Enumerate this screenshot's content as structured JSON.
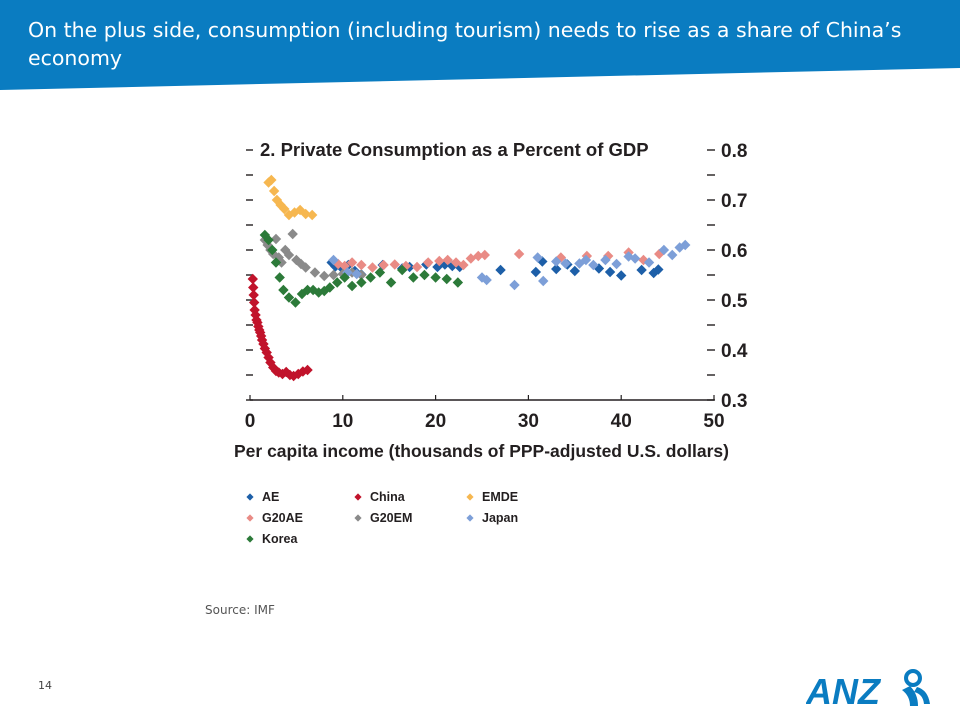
{
  "slide": {
    "title": "On the plus side, consumption (including tourism) needs to rise as a share of China’s economy",
    "source": "Source: IMF",
    "page_number": "14",
    "logo_text": "ANZ",
    "colors": {
      "banner": "#0a7cc1",
      "logo": "#0a7cc1",
      "text": "#231f20"
    }
  },
  "chart_data": {
    "type": "scatter",
    "title": "2. Private Consumption as a Percent of GDP",
    "xlabel": "Per capita income (thousands of PPP-adjusted U.S. dollars)",
    "ylabel": "",
    "xlim": [
      0,
      50
    ],
    "ylim": [
      0.3,
      0.8
    ],
    "x_ticks": [
      "0",
      "10",
      "20",
      "30",
      "40",
      "50"
    ],
    "y_ticks": [
      "0.3",
      "0.4",
      "0.5",
      "0.6",
      "0.7",
      "0.8"
    ],
    "y_axis_side": "right",
    "grid": false,
    "legend_position": "bottom",
    "series": [
      {
        "name": "AE",
        "color": "#1d5fa8",
        "x": [
          8.8,
          9.2,
          10.0,
          10.6,
          11.3,
          12.0,
          14.3,
          16.4,
          17.2,
          19.0,
          20.2,
          21.0,
          21.8,
          22.6,
          27.0,
          30.8,
          31.5,
          33.0,
          34.2,
          35.0,
          37.6,
          38.8,
          40.0,
          42.2,
          43.5,
          44.0
        ],
        "y": [
          0.575,
          0.567,
          0.562,
          0.57,
          0.558,
          0.551,
          0.57,
          0.563,
          0.566,
          0.571,
          0.566,
          0.571,
          0.568,
          0.566,
          0.56,
          0.556,
          0.577,
          0.562,
          0.571,
          0.558,
          0.563,
          0.556,
          0.549,
          0.56,
          0.554,
          0.561
        ]
      },
      {
        "name": "China",
        "color": "#c1132b",
        "x": [
          0.3,
          0.35,
          0.4,
          0.45,
          0.5,
          0.6,
          0.7,
          0.8,
          0.9,
          1.0,
          1.1,
          1.2,
          1.3,
          1.45,
          1.6,
          1.8,
          2.0,
          2.2,
          2.5,
          2.8,
          3.1,
          3.5,
          3.9,
          4.3,
          4.7,
          5.2,
          5.7,
          6.2
        ],
        "y": [
          0.542,
          0.525,
          0.51,
          0.495,
          0.48,
          0.47,
          0.46,
          0.455,
          0.447,
          0.44,
          0.435,
          0.428,
          0.42,
          0.412,
          0.403,
          0.395,
          0.385,
          0.375,
          0.365,
          0.358,
          0.355,
          0.352,
          0.356,
          0.35,
          0.348,
          0.352,
          0.357,
          0.36
        ]
      },
      {
        "name": "EMDE",
        "color": "#f6b750",
        "x": [
          2.0,
          2.3,
          2.6,
          2.9,
          3.3,
          3.7,
          4.2,
          4.8,
          5.4,
          6.0,
          6.7
        ],
        "y": [
          0.735,
          0.74,
          0.718,
          0.7,
          0.69,
          0.682,
          0.67,
          0.675,
          0.68,
          0.672,
          0.67
        ]
      },
      {
        "name": "G20AE",
        "color": "#e98b85",
        "x": [
          9.5,
          10.2,
          11.0,
          12.0,
          13.2,
          14.4,
          15.6,
          16.8,
          18.0,
          19.2,
          20.4,
          21.3,
          22.2,
          23.0,
          23.8,
          24.6,
          25.3,
          29.0,
          33.5,
          36.3,
          38.6,
          40.8,
          42.4,
          44.1
        ],
        "y": [
          0.572,
          0.568,
          0.575,
          0.57,
          0.565,
          0.57,
          0.571,
          0.568,
          0.566,
          0.575,
          0.578,
          0.58,
          0.575,
          0.57,
          0.583,
          0.588,
          0.59,
          0.592,
          0.585,
          0.588,
          0.588,
          0.595,
          0.58,
          0.592
        ]
      },
      {
        "name": "G20EM",
        "color": "#8a8a8a",
        "x": [
          1.6,
          1.9,
          2.2,
          2.5,
          2.8,
          3.1,
          3.4,
          3.8,
          4.2,
          4.6,
          5.0,
          5.5,
          6.0,
          7.0,
          8.0,
          9.0,
          10.0,
          11.0,
          12.0
        ],
        "y": [
          0.62,
          0.61,
          0.6,
          0.592,
          0.622,
          0.585,
          0.575,
          0.6,
          0.59,
          0.632,
          0.58,
          0.572,
          0.565,
          0.555,
          0.548,
          0.55,
          0.552,
          0.555,
          0.55
        ]
      },
      {
        "name": "Japan",
        "color": "#7d9fd8",
        "x": [
          9.0,
          10.5,
          11.5,
          25.0,
          25.5,
          28.5,
          31.0,
          31.6,
          33.0,
          34.0,
          35.5,
          36.2,
          37.0,
          38.3,
          39.5,
          40.8,
          41.5,
          43.0,
          44.6,
          45.5,
          46.3,
          46.9
        ],
        "y": [
          0.58,
          0.555,
          0.552,
          0.545,
          0.54,
          0.53,
          0.585,
          0.538,
          0.577,
          0.573,
          0.573,
          0.58,
          0.57,
          0.58,
          0.572,
          0.587,
          0.583,
          0.575,
          0.6,
          0.59,
          0.605,
          0.61
        ]
      },
      {
        "name": "Korea",
        "color": "#2c7a39",
        "x": [
          1.6,
          2.0,
          2.4,
          2.8,
          3.2,
          3.6,
          4.2,
          4.9,
          5.6,
          6.2,
          6.8,
          7.4,
          8.0,
          8.6,
          9.4,
          10.2,
          11.0,
          12.0,
          13.0,
          14.0,
          15.2,
          16.4,
          17.6,
          18.8,
          20.0,
          21.2,
          22.4
        ],
        "y": [
          0.63,
          0.62,
          0.6,
          0.575,
          0.545,
          0.52,
          0.505,
          0.495,
          0.512,
          0.52,
          0.52,
          0.515,
          0.518,
          0.525,
          0.535,
          0.545,
          0.528,
          0.535,
          0.545,
          0.555,
          0.535,
          0.56,
          0.545,
          0.55,
          0.545,
          0.542,
          0.535
        ]
      }
    ]
  }
}
